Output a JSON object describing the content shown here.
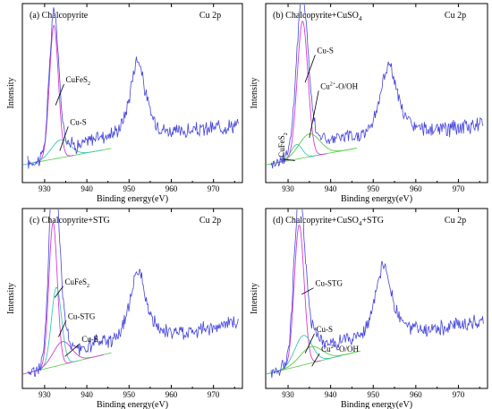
{
  "chart_data": [
    {
      "type": "line",
      "title": "(a) Chalcopyrite",
      "title_sub": "",
      "title_suffix": "",
      "spectrum": "Cu 2p",
      "xlabel": "Binding energy(eV)",
      "ylabel": "Intensity",
      "xlim": [
        926,
        976
      ],
      "xticks": [
        930,
        940,
        950,
        960,
        970
      ],
      "ylim": [
        0,
        100
      ],
      "y_ticks_labelled": false,
      "peaks": [
        {
          "name": "CuFeS2",
          "center": 932.2,
          "height": 82,
          "width": 1.05
        },
        {
          "name": "Cu-S",
          "center": 933.8,
          "height": 11,
          "width": 2.2
        },
        {
          "name": "Cu 2p1/2",
          "center": 952.0,
          "height": 52,
          "width": 1.6
        }
      ],
      "background": {
        "start": 6,
        "end": 30
      },
      "component_colors": [
        "#d43cd4",
        "#3cc8b4",
        "#55cc44"
      ],
      "data_color": "#4444dd",
      "annotations": [
        {
          "name": "cufes2-annotation",
          "text": "CuFeS",
          "sub": "2",
          "sup": "",
          "suffix": "",
          "x_label": 935.0,
          "y_label": 56,
          "x_target": 932.6,
          "y_target": 42,
          "rotate": false
        },
        {
          "name": "cu-s-annotation",
          "text": "Cu-S",
          "sub": "",
          "sup": "",
          "suffix": "",
          "x_label": 936.0,
          "y_label": 30,
          "x_target": 933.6,
          "y_target": 14,
          "rotate": false
        }
      ]
    },
    {
      "type": "line",
      "title": "(b) Chalcopyrite+CuSO",
      "title_sub": "4",
      "title_suffix": "",
      "spectrum": "Cu 2p",
      "xlabel": "Binding energy(eV)",
      "ylabel": "Intensity",
      "xlim": [
        926,
        976
      ],
      "xticks": [
        930,
        940,
        950,
        960,
        970
      ],
      "ylim": [
        0,
        100
      ],
      "y_ticks_labelled": false,
      "peaks": [
        {
          "name": "CuFeS2",
          "center": 932.0,
          "height": 9,
          "width": 1.3
        },
        {
          "name": "Cu-S",
          "center": 933.4,
          "height": 84,
          "width": 1.25
        },
        {
          "name": "Cu2+-O/OH",
          "center": 935.0,
          "height": 14,
          "width": 2.5
        },
        {
          "name": "Cu 2p1/2",
          "center": 953.6,
          "height": 48,
          "width": 1.8
        }
      ],
      "background": {
        "start": 6,
        "end": 30
      },
      "component_colors": [
        "#3cc8b4",
        "#d43cd4",
        "#55cc44",
        "#55cc44"
      ],
      "data_color": "#4444dd",
      "annotations": [
        {
          "name": "cufes2-annotation",
          "text": "CuFeS",
          "sub": "2",
          "sup": "",
          "suffix": "",
          "x_label": 929.2,
          "y_label": 10,
          "x_target": 931.6,
          "y_target": 8,
          "rotate": true
        },
        {
          "name": "cu-s-annotation",
          "text": "Cu-S",
          "sub": "",
          "sup": "",
          "suffix": "",
          "x_label": 936.8,
          "y_label": 74,
          "x_target": 934.0,
          "y_target": 56,
          "rotate": false
        },
        {
          "name": "cu2-o-oh-annotation",
          "text": "Cu",
          "sub": "",
          "sup": "2+",
          "suffix": "-O/OH",
          "x_label": 937.6,
          "y_label": 52,
          "x_target": 935.0,
          "y_target": 22,
          "rotate": false
        }
      ]
    },
    {
      "type": "line",
      "title": "(c) Chalcopyrite+STG",
      "title_sub": "",
      "title_suffix": "",
      "spectrum": "Cu 2p",
      "xlabel": "Binding energy(eV)",
      "ylabel": "Intensity",
      "xlim": [
        926,
        976
      ],
      "xticks": [
        930,
        940,
        950,
        960,
        970
      ],
      "ylim": [
        0,
        100
      ],
      "y_ticks_labelled": false,
      "peaks": [
        {
          "name": "CuFeS2",
          "center": 932.0,
          "height": 88,
          "width": 1.0
        },
        {
          "name": "Cu-STG",
          "center": 932.8,
          "height": 48,
          "width": 1.2
        },
        {
          "name": "Cu-S",
          "center": 934.2,
          "height": 14,
          "width": 2.2
        },
        {
          "name": "Cu 2p1/2",
          "center": 952.0,
          "height": 48,
          "width": 1.6
        }
      ],
      "background": {
        "start": 4,
        "end": 35
      },
      "component_colors": [
        "#d43cd4",
        "#3cc8b4",
        "#d43cd4",
        "#55cc44"
      ],
      "data_color": "#4444dd",
      "annotations": [
        {
          "name": "cufes2-annotation",
          "text": "CuFeS",
          "sub": "2",
          "sup": "",
          "suffix": "",
          "x_label": 934.8,
          "y_label": 58,
          "x_target": 932.4,
          "y_target": 50,
          "rotate": false
        },
        {
          "name": "cu-stg-annotation",
          "text": "Cu-STG",
          "sub": "",
          "sup": "",
          "suffix": "",
          "x_label": 935.5,
          "y_label": 37,
          "x_target": 933.3,
          "y_target": 26,
          "rotate": false
        },
        {
          "name": "cu-s-annotation",
          "text": "Cu-S",
          "sub": "",
          "sup": "",
          "suffix": "",
          "x_label": 938.8,
          "y_label": 23,
          "x_target": 934.8,
          "y_target": 14,
          "rotate": false
        }
      ]
    },
    {
      "type": "line",
      "title": "(d) Chalcopyrite+CuSO",
      "title_sub": "4",
      "title_suffix": "+STG",
      "spectrum": "Cu 2p",
      "xlabel": "Binding energy(eV)",
      "ylabel": "Intensity",
      "xlim": [
        926,
        976
      ],
      "xticks": [
        930,
        940,
        950,
        960,
        970
      ],
      "ylim": [
        0,
        100
      ],
      "y_ticks_labelled": false,
      "peaks": [
        {
          "name": "Cu-STG",
          "center": 932.6,
          "height": 86,
          "width": 1.15
        },
        {
          "name": "Cu-S",
          "center": 933.6,
          "height": 18,
          "width": 2.0
        },
        {
          "name": "Cu2+-O/OH",
          "center": 935.4,
          "height": 10,
          "width": 2.6
        },
        {
          "name": "Cu 2p1/2",
          "center": 952.4,
          "height": 48,
          "width": 1.8
        }
      ],
      "background": {
        "start": 4,
        "end": 36
      },
      "component_colors": [
        "#d43cd4",
        "#3cc8b4",
        "#55cc44",
        "#55cc44"
      ],
      "data_color": "#4444dd",
      "annotations": [
        {
          "name": "cu-stg-annotation",
          "text": "Cu-STG",
          "sub": "",
          "sup": "",
          "suffix": "",
          "x_label": 936.4,
          "y_label": 57,
          "x_target": 933.2,
          "y_target": 52,
          "rotate": false
        },
        {
          "name": "cu-s-annotation",
          "text": "Cu-S",
          "sub": "",
          "sup": "",
          "suffix": "",
          "x_label": 936.6,
          "y_label": 29,
          "x_target": 934.0,
          "y_target": 16,
          "rotate": false
        },
        {
          "name": "cu2-o-oh-annotation",
          "text": "Cu",
          "sub": "",
          "sup": "2+",
          "suffix": "-O/OH",
          "x_label": 937.8,
          "y_label": 17,
          "x_target": 935.6,
          "y_target": 8,
          "rotate": false
        }
      ]
    }
  ]
}
